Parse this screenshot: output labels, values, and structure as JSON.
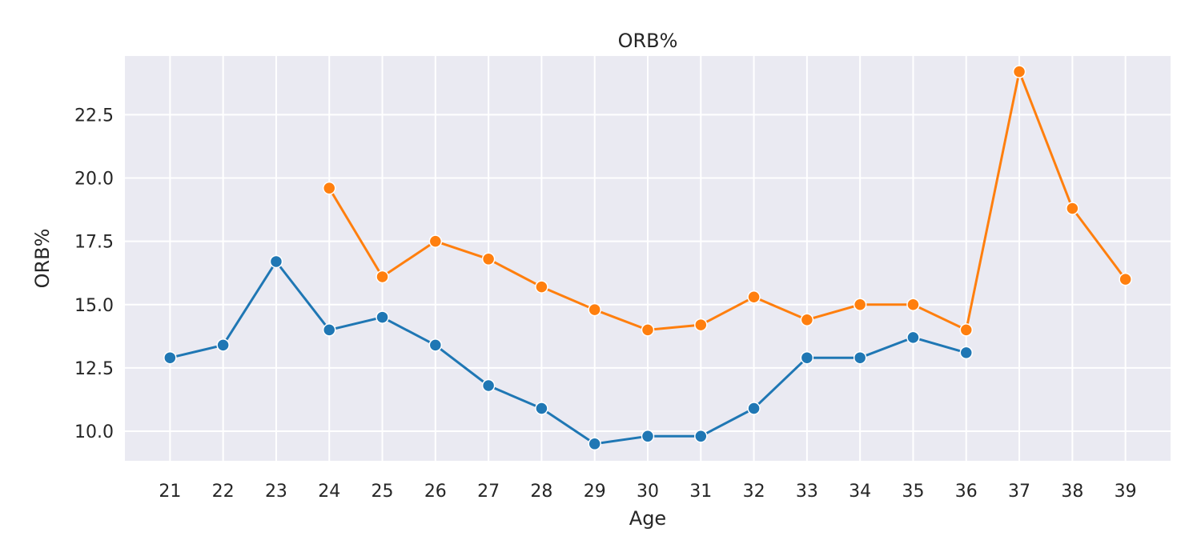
{
  "chart_data": {
    "type": "line",
    "title": "ORB%",
    "xlabel": "Age",
    "ylabel": "ORB%",
    "x_ticks": [
      21,
      22,
      23,
      24,
      25,
      26,
      27,
      28,
      29,
      30,
      31,
      32,
      33,
      34,
      35,
      36,
      37,
      38,
      39
    ],
    "y_ticks": [
      "10.0",
      "12.5",
      "15.0",
      "17.5",
      "20.0",
      "22.5"
    ],
    "xlim": [
      20.15,
      39.85
    ],
    "ylim": [
      8.83,
      24.82
    ],
    "grid": true,
    "colors": {
      "background": "#eaeaf2",
      "grid": "#ffffff"
    },
    "series": [
      {
        "color": "#1f77b4",
        "x": [
          21,
          22,
          23,
          24,
          25,
          26,
          27,
          28,
          29,
          30,
          31,
          32,
          33,
          34,
          35,
          36
        ],
        "y": [
          12.9,
          13.4,
          16.7,
          14.0,
          14.5,
          13.4,
          11.8,
          10.9,
          9.5,
          9.8,
          9.8,
          10.9,
          12.9,
          12.9,
          13.7,
          13.1
        ]
      },
      {
        "color": "#ff7f0e",
        "x": [
          24,
          25,
          26,
          27,
          28,
          29,
          30,
          31,
          32,
          33,
          34,
          35,
          36,
          37,
          38,
          39
        ],
        "y": [
          19.6,
          16.1,
          17.5,
          16.8,
          15.7,
          14.8,
          14.0,
          14.2,
          15.3,
          14.4,
          15.0,
          15.0,
          14.0,
          24.2,
          18.8,
          16.0
        ]
      }
    ]
  }
}
